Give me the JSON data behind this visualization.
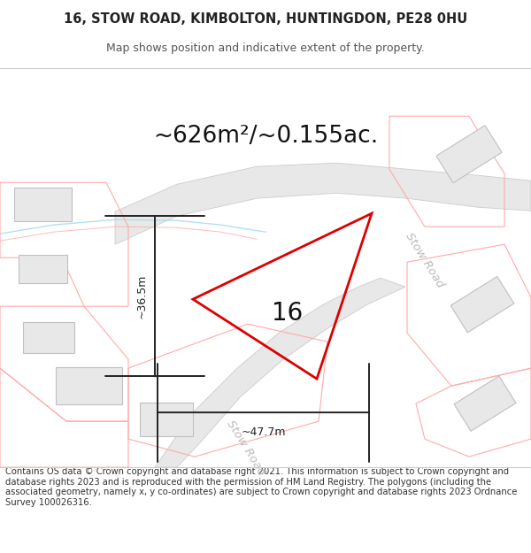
{
  "title_line1": "16, STOW ROAD, KIMBOLTON, HUNTINGDON, PE28 0HU",
  "title_line2": "Map shows position and indicative extent of the property.",
  "area_text": "~626m²/~0.155ac.",
  "dim_horizontal": "~47.7m",
  "dim_vertical": "~36.5m",
  "property_number": "16",
  "footer_text": "Contains OS data © Crown copyright and database right 2021. This information is subject to Crown copyright and database rights 2023 and is reproduced with the permission of HM Land Registry. The polygons (including the associated geometry, namely x, y co-ordinates) are subject to Crown copyright and database rights 2023 Ordnance Survey 100026316.",
  "bg_color": "#ffffff",
  "property_stroke": "#dd0000",
  "building_fill": "#e8e8e8",
  "building_stroke": "#c0c0c0",
  "plot_stroke": "#ffaaaa",
  "road_fill": "#e8e8e8",
  "road_stroke": "#cccccc",
  "road_label_color": "#bbbbbb",
  "blue_line": "#aaddee",
  "pink_line": "#ffbbbb",
  "dim_color": "#222222",
  "area_color": "#111111",
  "title_color": "#222222",
  "subtitle_color": "#555555",
  "footer_color": "#333333"
}
